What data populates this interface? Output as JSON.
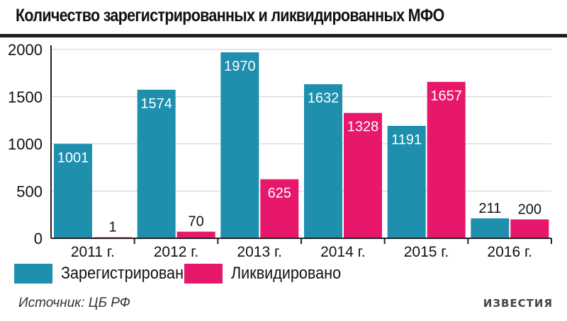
{
  "title": "Количество зарегистрированных и ликвидированных МФО",
  "source": "Источник: ЦБ РФ",
  "logo": "ИЗВЕСТИЯ",
  "colors": {
    "registered": "#1e8fad",
    "liquidated": "#e7176b",
    "axis": "#222222",
    "grid": "#cfcfcf"
  },
  "chart_data": {
    "type": "bar",
    "title": "Количество зарегистрированных и ликвидированных МФО",
    "categories": [
      "2011 г.",
      "2012 г.",
      "2013 г.",
      "2014 г.",
      "2015 г.",
      "2016 г."
    ],
    "series": [
      {
        "name": "Зарегистрировано",
        "values": [
          1001,
          1574,
          1970,
          1632,
          1191,
          211
        ]
      },
      {
        "name": "Ликвидировано",
        "values": [
          1,
          70,
          625,
          1328,
          1657,
          200
        ]
      }
    ],
    "yticks": [
      0,
      500,
      1000,
      1500,
      2000
    ],
    "ylim": [
      0,
      2000
    ],
    "grid": true,
    "legend": "bottom-left",
    "data_labels": true
  }
}
